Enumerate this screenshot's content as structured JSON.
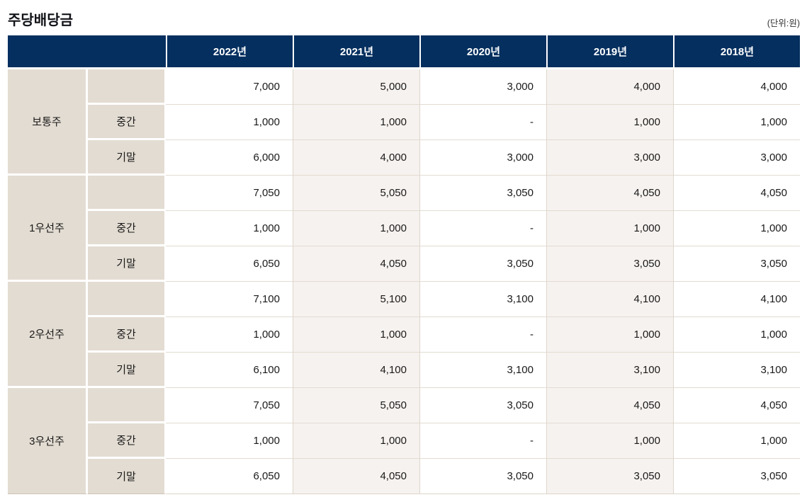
{
  "page": {
    "title": "주당배당금",
    "unit_label": "(단위:원)"
  },
  "table": {
    "years": [
      "2022년",
      "2021년",
      "2020년",
      "2019년",
      "2018년"
    ],
    "groups": [
      {
        "name": "보통주",
        "rows": [
          {
            "label": "",
            "values": [
              "7,000",
              "5,000",
              "3,000",
              "4,000",
              "4,000"
            ]
          },
          {
            "label": "중간",
            "values": [
              "1,000",
              "1,000",
              "-",
              "1,000",
              "1,000"
            ]
          },
          {
            "label": "기말",
            "values": [
              "6,000",
              "4,000",
              "3,000",
              "3,000",
              "3,000"
            ]
          }
        ]
      },
      {
        "name": "1우선주",
        "rows": [
          {
            "label": "",
            "values": [
              "7,050",
              "5,050",
              "3,050",
              "4,050",
              "4,050"
            ]
          },
          {
            "label": "중간",
            "values": [
              "1,000",
              "1,000",
              "-",
              "1,000",
              "1,000"
            ]
          },
          {
            "label": "기말",
            "values": [
              "6,050",
              "4,050",
              "3,050",
              "3,050",
              "3,050"
            ]
          }
        ]
      },
      {
        "name": "2우선주",
        "rows": [
          {
            "label": "",
            "values": [
              "7,100",
              "5,100",
              "3,100",
              "4,100",
              "4,100"
            ]
          },
          {
            "label": "중간",
            "values": [
              "1,000",
              "1,000",
              "-",
              "1,000",
              "1,000"
            ]
          },
          {
            "label": "기말",
            "values": [
              "6,100",
              "4,100",
              "3,100",
              "3,100",
              "3,100"
            ]
          }
        ]
      },
      {
        "name": "3우선주",
        "rows": [
          {
            "label": "",
            "values": [
              "7,050",
              "5,050",
              "3,050",
              "4,050",
              "4,050"
            ]
          },
          {
            "label": "중간",
            "values": [
              "1,000",
              "1,000",
              "-",
              "1,000",
              "1,000"
            ]
          },
          {
            "label": "기말",
            "values": [
              "6,050",
              "4,050",
              "3,050",
              "3,050",
              "3,050"
            ]
          }
        ]
      }
    ]
  },
  "colors": {
    "header_bg": "#042f5f",
    "header_text": "#ffffff",
    "label_bg": "#e3dcd2",
    "striped_column_bg": "#f6f2ef",
    "grid_line": "#ddd5ca",
    "body_text": "#1a1a1a"
  }
}
